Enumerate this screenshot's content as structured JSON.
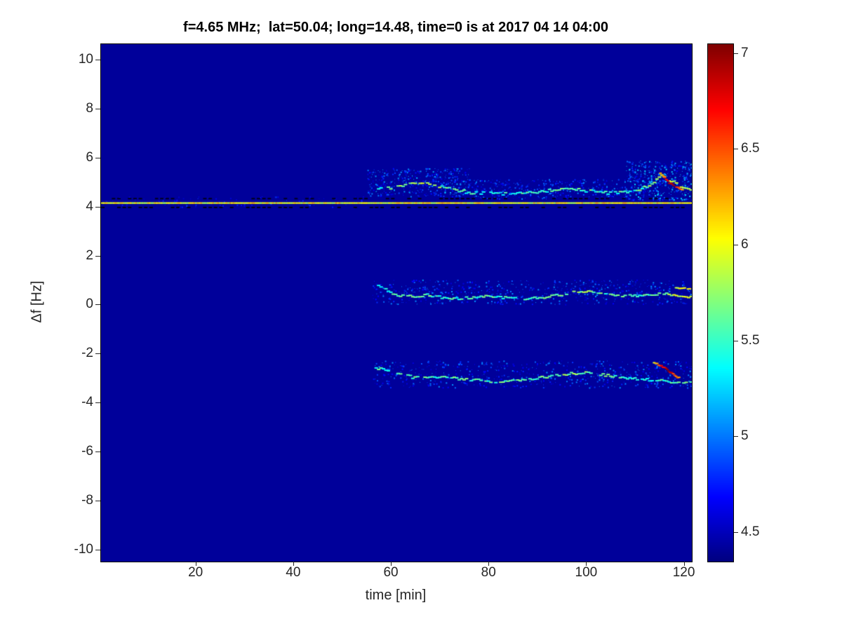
{
  "chart_data": {
    "type": "heatmap",
    "title": "f=4.65 MHz;  lat=50.04; long=14.48, time=0 is at 2017 04 14 04:00",
    "xlabel": "time [min]",
    "ylabel": "Δf [Hz]",
    "xlim": [
      0.5,
      121.5
    ],
    "ylim": [
      -10.45,
      10.65
    ],
    "x_ticks": [
      20,
      40,
      60,
      80,
      100,
      120
    ],
    "y_ticks": [
      10,
      8,
      6,
      4,
      2,
      0,
      -2,
      -4,
      -6,
      -8,
      -10
    ],
    "grid": false,
    "legend": "none",
    "colorbar": {
      "position": "right",
      "range": [
        4.35,
        7.05
      ],
      "ticks": [
        4.5,
        5,
        5.5,
        6,
        6.5,
        7
      ],
      "colormap": "jet"
    },
    "background_value": 4.42,
    "features": {
      "carrier_line": {
        "description": "continuous bright yellow-green line across full time range",
        "f": 4.2,
        "t_start": 0.5,
        "t_end": 121.5,
        "value": 6.0,
        "dark_dash_offsets": [
          0.18,
          -0.18
        ],
        "dark_color": "#00001c"
      },
      "traces": [
        {
          "name": "upper-doppler-mode",
          "step": 0.5,
          "gap": 0.15,
          "jitter": 0.12,
          "value_jitter": 0.4,
          "dash_w": 5,
          "dash_h": 2,
          "points": [
            [
              57,
              4.75,
              5.5
            ],
            [
              60,
              4.85,
              5.6
            ],
            [
              63,
              4.95,
              5.8
            ],
            [
              66,
              5.0,
              5.9
            ],
            [
              69,
              4.9,
              5.7
            ],
            [
              72,
              4.75,
              5.6
            ],
            [
              75,
              4.65,
              5.5
            ],
            [
              78,
              4.6,
              5.4
            ],
            [
              81,
              4.6,
              5.4
            ],
            [
              84,
              4.55,
              5.4
            ],
            [
              87,
              4.6,
              5.5
            ],
            [
              90,
              4.65,
              5.5
            ],
            [
              93,
              4.75,
              5.6
            ],
            [
              96,
              4.8,
              5.6
            ],
            [
              99,
              4.7,
              5.5
            ],
            [
              102,
              4.65,
              5.5
            ],
            [
              105,
              4.6,
              5.5
            ],
            [
              108,
              4.65,
              5.5
            ],
            [
              111,
              4.75,
              5.6
            ],
            [
              113,
              5.0,
              5.7
            ],
            [
              115,
              5.3,
              5.9
            ],
            [
              117,
              5.1,
              6.0
            ],
            [
              119,
              4.85,
              5.9
            ],
            [
              121,
              4.72,
              5.7
            ]
          ]
        },
        {
          "name": "upper-disturbance-arc",
          "step": 0.3,
          "gap": 0.05,
          "jitter": 0.06,
          "value_jitter": 0.25,
          "dash_w": 4,
          "dash_h": 2,
          "points": [
            [
              114.5,
              5.5,
              6.1
            ],
            [
              115.5,
              5.3,
              6.5
            ],
            [
              116.5,
              5.05,
              6.8
            ],
            [
              117.5,
              4.9,
              6.9
            ],
            [
              118.5,
              4.8,
              6.6
            ],
            [
              119.5,
              4.72,
              6.2
            ]
          ]
        },
        {
          "name": "middle-doppler-mode",
          "step": 0.5,
          "gap": 0.14,
          "jitter": 0.1,
          "value_jitter": 0.35,
          "dash_w": 5,
          "dash_h": 2,
          "points": [
            [
              57,
              0.85,
              5.4
            ],
            [
              59,
              0.6,
              5.5
            ],
            [
              61,
              0.45,
              5.5
            ],
            [
              64,
              0.4,
              5.6
            ],
            [
              67,
              0.45,
              5.6
            ],
            [
              70,
              0.35,
              5.5
            ],
            [
              73,
              0.3,
              5.5
            ],
            [
              76,
              0.35,
              5.6
            ],
            [
              79,
              0.4,
              5.6
            ],
            [
              82,
              0.35,
              5.5
            ],
            [
              85,
              0.3,
              5.5
            ],
            [
              88,
              0.3,
              5.5
            ],
            [
              91,
              0.35,
              5.6
            ],
            [
              94,
              0.45,
              5.7
            ],
            [
              97,
              0.55,
              5.7
            ],
            [
              100,
              0.6,
              5.8
            ],
            [
              103,
              0.5,
              5.6
            ],
            [
              106,
              0.45,
              5.6
            ],
            [
              109,
              0.4,
              5.5
            ],
            [
              112,
              0.45,
              5.6
            ],
            [
              115,
              0.5,
              5.7
            ],
            [
              118,
              0.45,
              5.9
            ],
            [
              120,
              0.4,
              6.0
            ],
            [
              121,
              0.35,
              5.9
            ]
          ]
        },
        {
          "name": "middle-end-split",
          "step": 0.35,
          "gap": 0.1,
          "jitter": 0.05,
          "value_jitter": 0.25,
          "dash_w": 4,
          "dash_h": 2,
          "points": [
            [
              118,
              0.75,
              5.9
            ],
            [
              119.5,
              0.72,
              6.1
            ],
            [
              121,
              0.68,
              6.0
            ]
          ]
        },
        {
          "name": "lower-doppler-mode",
          "step": 0.5,
          "gap": 0.14,
          "jitter": 0.1,
          "value_jitter": 0.35,
          "dash_w": 5,
          "dash_h": 2,
          "points": [
            [
              56,
              -2.5,
              5.5
            ],
            [
              58,
              -2.6,
              5.5
            ],
            [
              61,
              -2.75,
              5.5
            ],
            [
              64,
              -2.9,
              5.6
            ],
            [
              67,
              -2.95,
              5.6
            ],
            [
              70,
              -2.9,
              5.5
            ],
            [
              73,
              -2.95,
              5.6
            ],
            [
              76,
              -3.0,
              5.6
            ],
            [
              79,
              -3.05,
              5.5
            ],
            [
              82,
              -3.1,
              5.6
            ],
            [
              85,
              -3.05,
              5.6
            ],
            [
              88,
              -3.0,
              5.6
            ],
            [
              91,
              -2.9,
              5.6
            ],
            [
              94,
              -2.8,
              5.7
            ],
            [
              97,
              -2.75,
              5.7
            ],
            [
              100,
              -2.7,
              5.7
            ],
            [
              103,
              -2.8,
              5.6
            ],
            [
              106,
              -2.9,
              5.6
            ],
            [
              109,
              -2.95,
              5.5
            ],
            [
              112,
              -3.0,
              5.5
            ],
            [
              115,
              -3.05,
              5.5
            ],
            [
              118,
              -3.1,
              5.5
            ],
            [
              121,
              -3.1,
              5.6
            ]
          ]
        },
        {
          "name": "lower-disturbance-arc",
          "step": 0.3,
          "gap": 0.05,
          "jitter": 0.06,
          "value_jitter": 0.25,
          "dash_w": 4,
          "dash_h": 2,
          "points": [
            [
              113.5,
              -2.3,
              6.0
            ],
            [
              114.5,
              -2.4,
              6.5
            ],
            [
              115.5,
              -2.5,
              6.8
            ],
            [
              116.5,
              -2.65,
              6.9
            ],
            [
              117.5,
              -2.8,
              6.6
            ],
            [
              118.8,
              -2.95,
              6.2
            ]
          ]
        }
      ],
      "noise_clusters": [
        {
          "name": "upper-cloud-early",
          "t0": 55,
          "t1": 76,
          "f0": 4.45,
          "f1": 5.6,
          "density": 450,
          "vmin": 4.55,
          "vmax": 5.15
        },
        {
          "name": "upper-cloud-mid",
          "t0": 76,
          "t1": 108,
          "f0": 4.35,
          "f1": 5.15,
          "density": 350,
          "vmin": 4.55,
          "vmax": 5.1
        },
        {
          "name": "upper-cloud-late",
          "t0": 108,
          "t1": 121.5,
          "f0": 4.3,
          "f1": 5.9,
          "density": 500,
          "vmin": 4.6,
          "vmax": 5.3
        },
        {
          "name": "middle-cloud",
          "t0": 56,
          "t1": 121.5,
          "f0": 0.05,
          "f1": 1.05,
          "density": 650,
          "vmin": 4.55,
          "vmax": 5.1
        },
        {
          "name": "lower-cloud",
          "t0": 56,
          "t1": 121.5,
          "f0": -3.35,
          "f1": -2.25,
          "density": 600,
          "vmin": 4.55,
          "vmax": 5.1
        },
        {
          "name": "carrier-speckle",
          "t0": 0.5,
          "t1": 55,
          "f0": 4.0,
          "f1": 4.45,
          "density": 100,
          "vmin": 4.5,
          "vmax": 4.9
        }
      ]
    }
  }
}
